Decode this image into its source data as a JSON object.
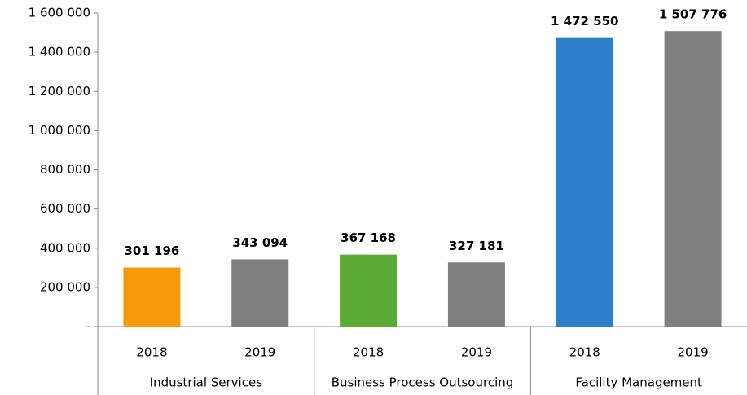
{
  "chart_data": {
    "type": "bar",
    "categories": [
      "2018",
      "2019",
      "2018",
      "2019",
      "2018",
      "2019"
    ],
    "groups": [
      "Industrial Services",
      "Business Process Outsourcing",
      "Facility Management"
    ],
    "values": [
      301196,
      343094,
      367168,
      327181,
      1472550,
      1507776
    ],
    "value_labels": [
      "301 196",
      "343 094",
      "367 168",
      "327 181",
      "1 472 550",
      "1 507 776"
    ],
    "colors": [
      "#f79a0a",
      "#7f7f7f",
      "#5aaa35",
      "#7f7f7f",
      "#2e7fcb",
      "#7f7f7f"
    ],
    "ylim": [
      0,
      1600000
    ],
    "yticks": [
      {
        "value": 0,
        "label": "-"
      },
      {
        "value": 200000,
        "label": "200 000"
      },
      {
        "value": 400000,
        "label": "400 000"
      },
      {
        "value": 600000,
        "label": "600 000"
      },
      {
        "value": 800000,
        "label": "800 000"
      },
      {
        "value": 1000000,
        "label": "1 000 000"
      },
      {
        "value": 1200000,
        "label": "1 200 000"
      },
      {
        "value": 1400000,
        "label": "1 400 000"
      },
      {
        "value": 1600000,
        "label": "1 600 000"
      }
    ],
    "grid": false
  }
}
